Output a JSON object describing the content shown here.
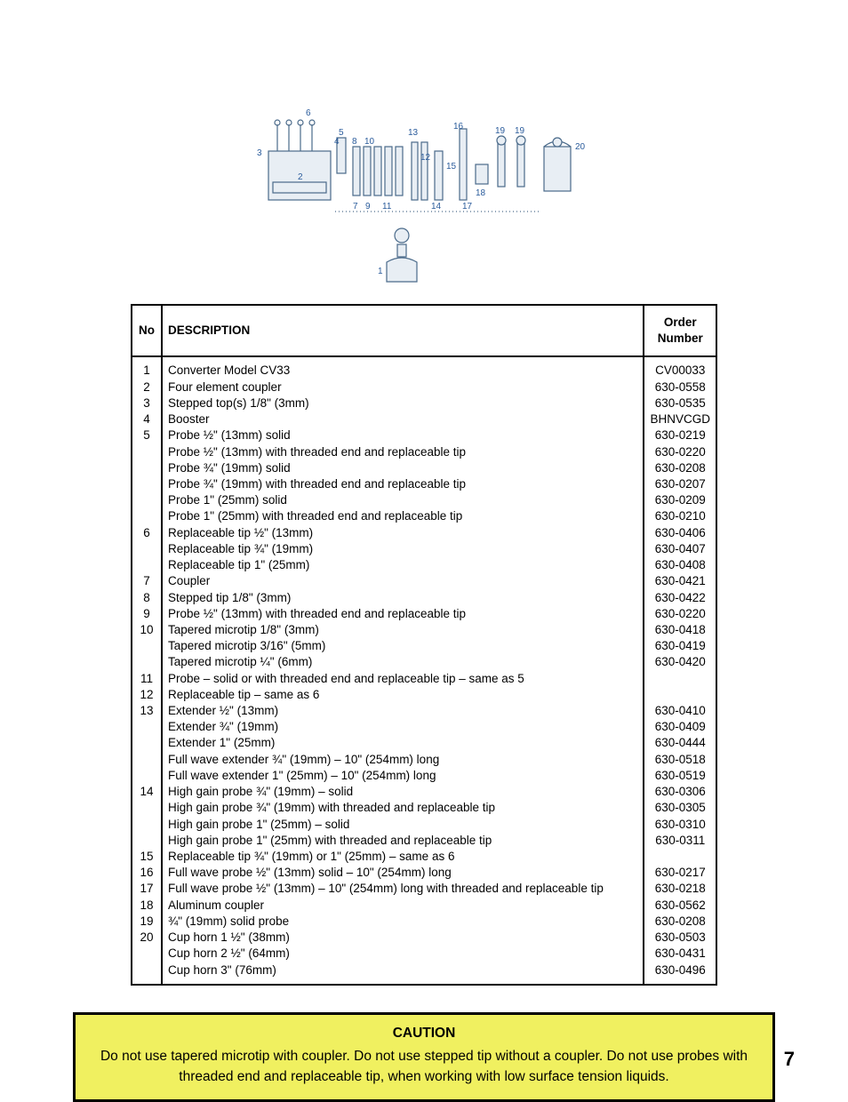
{
  "page_number": "7",
  "diagram": {
    "labels": [
      "1",
      "2",
      "3",
      "4",
      "5",
      "6",
      "7",
      "8",
      "9",
      "10",
      "11",
      "12",
      "13",
      "14",
      "15",
      "16",
      "17",
      "18",
      "19",
      "20"
    ],
    "stroke_color": "#4a6a8a",
    "fill_color": "#e8eef4",
    "num_color": "#2b5c9c"
  },
  "table": {
    "headers": {
      "no": "No",
      "description": "DESCRIPTION",
      "order": "Order Number"
    },
    "rows": [
      {
        "no": "1",
        "description": "Converter Model CV33",
        "order": "CV00033"
      },
      {
        "no": "2",
        "description": "Four element coupler",
        "order": "630-0558"
      },
      {
        "no": "3",
        "description": "Stepped top(s) 1/8\" (3mm)",
        "order": "630-0535"
      },
      {
        "no": "4",
        "description": "Booster",
        "order": "BHNVCGD"
      },
      {
        "no": "5",
        "description": "Probe ½\" (13mm) solid",
        "order": "630-0219"
      },
      {
        "no": "",
        "description": "Probe ½\" (13mm) with threaded end and replaceable tip",
        "order": "630-0220"
      },
      {
        "no": "",
        "description": "Probe ¾\" (19mm) solid",
        "order": "630-0208"
      },
      {
        "no": "",
        "description": "Probe ¾\" (19mm) with threaded end and replaceable tip",
        "order": "630-0207"
      },
      {
        "no": "",
        "description": "Probe 1\" (25mm) solid",
        "order": "630-0209"
      },
      {
        "no": "",
        "description": "Probe 1\" (25mm) with threaded end and replaceable tip",
        "order": "630-0210"
      },
      {
        "no": "6",
        "description": "Replaceable tip ½\" (13mm)",
        "order": "630-0406"
      },
      {
        "no": "",
        "description": "Replaceable tip ¾\" (19mm)",
        "order": "630-0407"
      },
      {
        "no": "",
        "description": "Replaceable tip 1\" (25mm)",
        "order": "630-0408"
      },
      {
        "no": "7",
        "description": "Coupler",
        "order": "630-0421"
      },
      {
        "no": "8",
        "description": "Stepped tip 1/8\" (3mm)",
        "order": "630-0422"
      },
      {
        "no": "9",
        "description": "Probe ½\" (13mm) with threaded end and replaceable tip",
        "order": "630-0220"
      },
      {
        "no": "10",
        "description": "Tapered microtip 1/8\" (3mm)",
        "order": "630-0418"
      },
      {
        "no": "",
        "description": "Tapered microtip 3/16\" (5mm)",
        "order": "630-0419"
      },
      {
        "no": "",
        "description": "Tapered microtip ¼\" (6mm)",
        "order": "630-0420"
      },
      {
        "no": "11",
        "description": "Probe – solid or with threaded end and replaceable tip – same as 5",
        "order": ""
      },
      {
        "no": "12",
        "description": "Replaceable tip – same as 6",
        "order": ""
      },
      {
        "no": "13",
        "description": "Extender ½\"  (13mm)",
        "order": "630-0410"
      },
      {
        "no": "",
        "description": "Extender ¾\" (19mm)",
        "order": "630-0409"
      },
      {
        "no": "",
        "description": "Extender 1\" (25mm)",
        "order": "630-0444"
      },
      {
        "no": "",
        "description": "Full wave extender ¾\" (19mm) – 10\" (254mm) long",
        "order": "630-0518"
      },
      {
        "no": "",
        "description": "Full wave extender 1\" (25mm) – 10\" (254mm) long",
        "order": "630-0519"
      },
      {
        "no": "14",
        "description": "High gain probe ¾\" (19mm) – solid",
        "order": "630-0306"
      },
      {
        "no": "",
        "description": "High gain probe ¾\" (19mm) with threaded and replaceable tip",
        "order": "630-0305"
      },
      {
        "no": "",
        "description": "High gain probe 1\" (25mm) – solid",
        "order": "630-0310"
      },
      {
        "no": "",
        "description": "High gain probe 1\" (25mm) with threaded and replaceable tip",
        "order": "630-0311"
      },
      {
        "no": "15",
        "description": "Replaceable tip ¾\" (19mm) or 1\" (25mm) – same as 6",
        "order": ""
      },
      {
        "no": "16",
        "description": "Full wave probe ½\" (13mm) solid – 10\" (254mm) long",
        "order": "630-0217"
      },
      {
        "no": "17",
        "description": "Full wave probe ½\" (13mm) – 10\" (254mm) long with threaded and replaceable tip",
        "order": "630-0218"
      },
      {
        "no": "18",
        "description": "Aluminum coupler",
        "order": "630-0562"
      },
      {
        "no": "19",
        "description": "¾\" (19mm) solid probe",
        "order": "630-0208"
      },
      {
        "no": "20",
        "description": "Cup horn 1 ½\" (38mm)",
        "order": "630-0503"
      },
      {
        "no": "",
        "description": "Cup horn 2 ½\" (64mm)",
        "order": "630-0431"
      },
      {
        "no": "",
        "description": "Cup horn 3\" (76mm)",
        "order": "630-0496"
      }
    ]
  },
  "caution": {
    "title": "CAUTION",
    "body": "Do not use tapered microtip with coupler. Do not use stepped tip without a coupler. Do not use probes with threaded end and replaceable tip, when working with low surface tension liquids."
  }
}
